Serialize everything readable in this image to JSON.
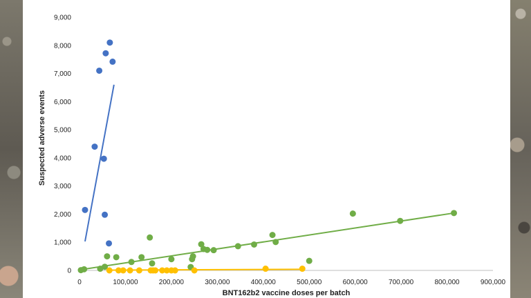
{
  "chart_data": {
    "type": "scatter",
    "title": "",
    "xlabel": "BNT162b2 vaccine doses per batch",
    "ylabel": "Suspected adverse events",
    "xlim": [
      0,
      900000
    ],
    "ylim": [
      0,
      9000
    ],
    "x_ticks": [
      "0",
      "100,000",
      "200,000",
      "300,000",
      "400,000",
      "500,000",
      "600,000",
      "700,000",
      "800,000",
      "900,000"
    ],
    "y_ticks": [
      "0",
      "1,000",
      "2,000",
      "3,000",
      "4,000",
      "5,000",
      "6,000",
      "7,000",
      "8,000",
      "9,000"
    ],
    "grid": false,
    "legend": "none",
    "series": [
      {
        "color": "#4472c4",
        "points": [
          [
            12000,
            2150
          ],
          [
            33000,
            4400
          ],
          [
            43000,
            7100
          ],
          [
            53000,
            3970
          ],
          [
            55000,
            1980
          ],
          [
            57000,
            7720
          ],
          [
            64000,
            960
          ],
          [
            66000,
            8100
          ],
          [
            72000,
            7420
          ]
        ],
        "trendline": [
          [
            12000,
            1030
          ],
          [
            75000,
            6600
          ]
        ]
      },
      {
        "color": "#70ad47",
        "points": [
          [
            3000,
            10
          ],
          [
            10000,
            40
          ],
          [
            45000,
            60
          ],
          [
            55000,
            130
          ],
          [
            60000,
            500
          ],
          [
            80000,
            470
          ],
          [
            113000,
            300
          ],
          [
            135000,
            470
          ],
          [
            153000,
            1170
          ],
          [
            158000,
            250
          ],
          [
            200000,
            400
          ],
          [
            242000,
            120
          ],
          [
            245000,
            400
          ],
          [
            247000,
            500
          ],
          [
            265000,
            930
          ],
          [
            270000,
            760
          ],
          [
            278000,
            730
          ],
          [
            292000,
            720
          ],
          [
            345000,
            860
          ],
          [
            380000,
            920
          ],
          [
            420000,
            1260
          ],
          [
            427000,
            1010
          ],
          [
            500000,
            340
          ],
          [
            595000,
            2020
          ],
          [
            698000,
            1760
          ],
          [
            815000,
            2040
          ]
        ],
        "trendline": [
          [
            0,
            20
          ],
          [
            815000,
            2040
          ]
        ]
      },
      {
        "color": "#ffc000",
        "points": [
          [
            65000,
            0
          ],
          [
            85000,
            0
          ],
          [
            95000,
            0
          ],
          [
            110000,
            0
          ],
          [
            130000,
            0
          ],
          [
            155000,
            0
          ],
          [
            160000,
            0
          ],
          [
            165000,
            0
          ],
          [
            180000,
            0
          ],
          [
            190000,
            0
          ],
          [
            200000,
            0
          ],
          [
            208000,
            0
          ],
          [
            250000,
            0
          ],
          [
            405000,
            60
          ],
          [
            485000,
            60
          ]
        ],
        "trendline": [
          [
            65000,
            10
          ],
          [
            485000,
            40
          ]
        ]
      }
    ]
  }
}
